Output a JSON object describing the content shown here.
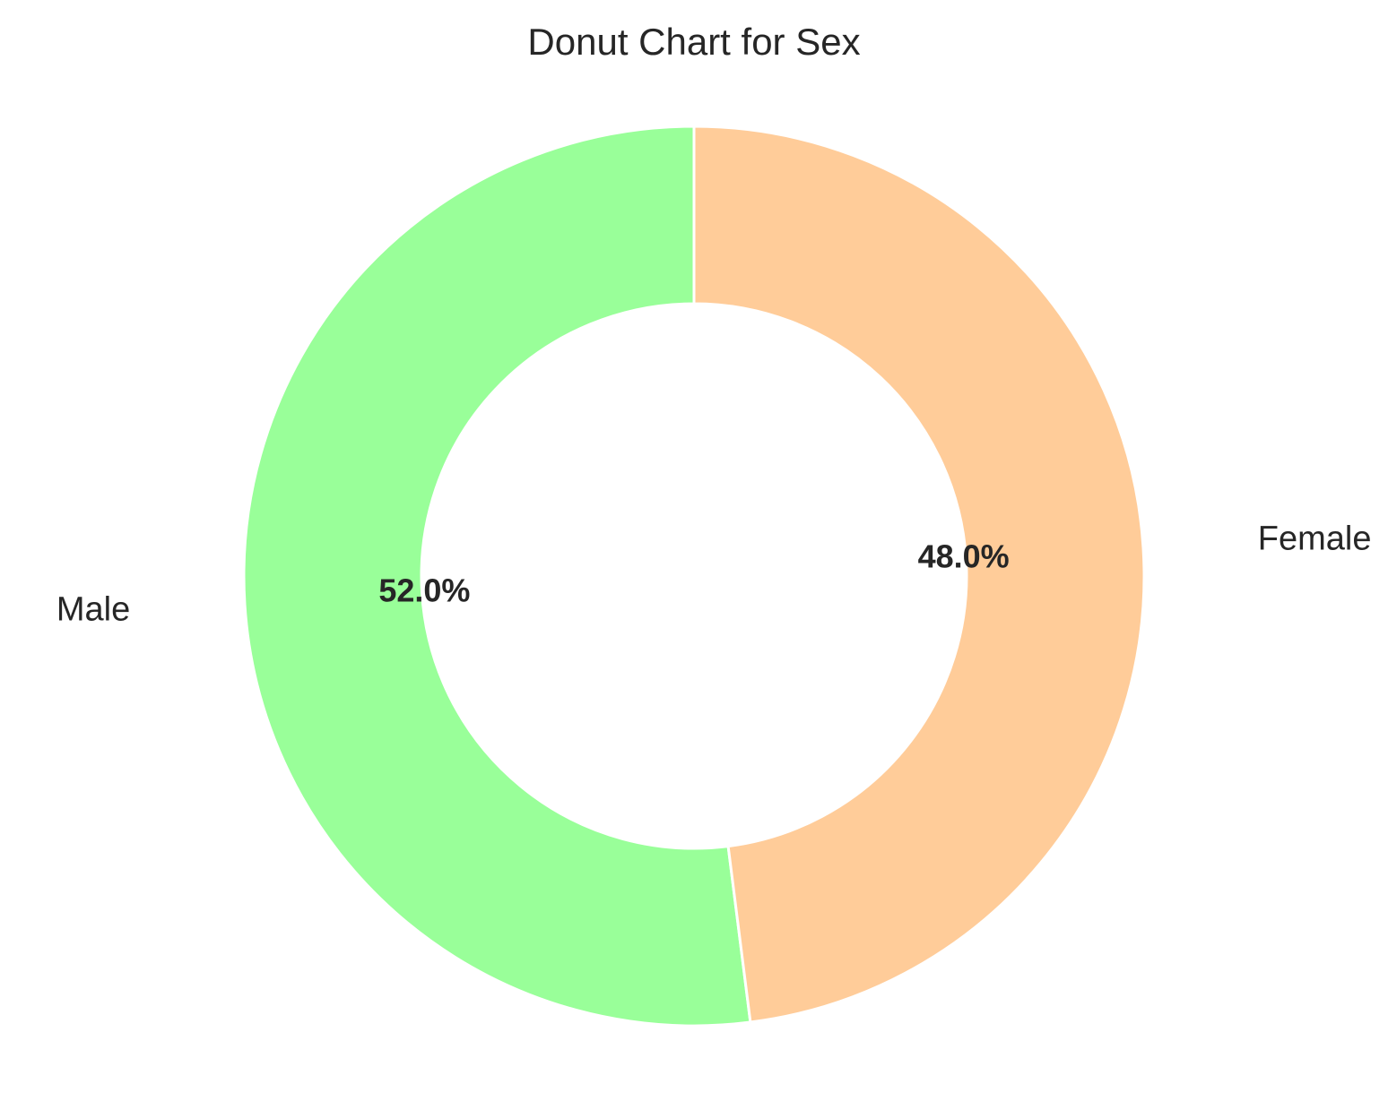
{
  "chart_data": {
    "type": "pie",
    "variant": "donut",
    "title": "Donut Chart for Sex",
    "start_angle_deg": 90,
    "direction": "counterclockwise",
    "slices": [
      {
        "label": "Male",
        "value": 52.0,
        "pct_label": "52.0%",
        "color": "#99ff99"
      },
      {
        "label": "Female",
        "value": 48.0,
        "pct_label": "48.0%",
        "color": "#ffcc99"
      }
    ]
  },
  "colors": {
    "text": "#262626",
    "slice_edge": "#ffffff",
    "background": "#ffffff"
  }
}
